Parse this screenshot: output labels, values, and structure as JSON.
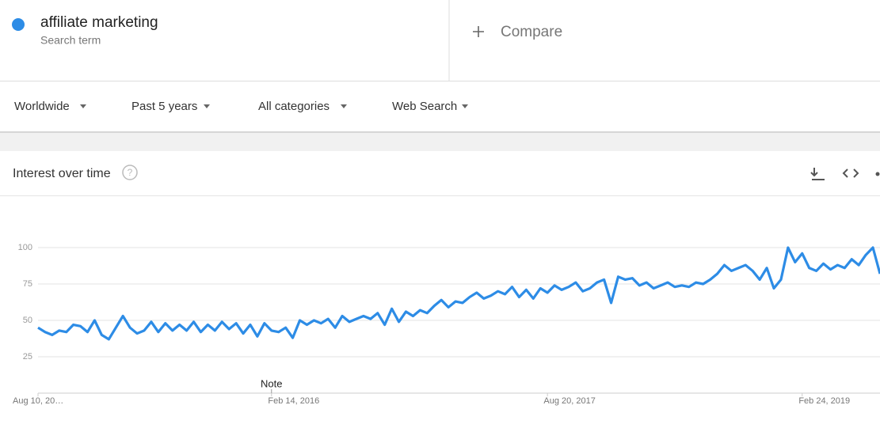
{
  "search": {
    "subtitle": "Search term",
    "compare": "Compare"
  },
  "filters": [
    "Worldwide",
    "Past 5 years",
    "All categories",
    "Web Search"
  ],
  "chart_data": {
    "type": "line",
    "title": "Interest over time",
    "annotation": "Note",
    "categories": [
      "Aug 10, 20…",
      null,
      null,
      null,
      null,
      null,
      null,
      null,
      null,
      null,
      null,
      null,
      null,
      null,
      null,
      null,
      null,
      null,
      null,
      null,
      null,
      null,
      null,
      null,
      null,
      null,
      null,
      null,
      null,
      null,
      null,
      null,
      null,
      "Feb 14, 2016",
      null,
      null,
      null,
      null,
      null,
      null,
      null,
      null,
      null,
      null,
      null,
      null,
      null,
      null,
      null,
      null,
      null,
      null,
      null,
      null,
      null,
      null,
      null,
      null,
      null,
      null,
      null,
      null,
      null,
      null,
      null,
      null,
      null,
      null,
      null,
      null,
      null,
      null,
      "Aug 20, 2017",
      null,
      null,
      null,
      null,
      null,
      null,
      null,
      null,
      null,
      null,
      null,
      null,
      null,
      null,
      null,
      null,
      null,
      null,
      null,
      null,
      null,
      null,
      null,
      null,
      null,
      null,
      null,
      null,
      null,
      null,
      null,
      null,
      null,
      null,
      null,
      "Feb 24, 2019",
      null,
      null,
      null,
      null,
      null,
      null,
      null,
      null,
      null,
      null,
      null
    ],
    "series": [
      {
        "name": "affiliate marketing",
        "color": "#2d8ce6",
        "values": [
          45,
          42,
          40,
          43,
          42,
          47,
          46,
          42,
          50,
          40,
          37,
          45,
          53,
          45,
          41,
          43,
          49,
          42,
          48,
          43,
          47,
          43,
          49,
          42,
          47,
          43,
          49,
          44,
          48,
          41,
          47,
          39,
          48,
          43,
          42,
          45,
          38,
          50,
          47,
          50,
          48,
          51,
          45,
          53,
          49,
          51,
          53,
          51,
          55,
          47,
          58,
          49,
          56,
          53,
          57,
          55,
          60,
          64,
          59,
          63,
          62,
          66,
          69,
          65,
          67,
          70,
          68,
          73,
          66,
          71,
          65,
          72,
          69,
          74,
          71,
          73,
          76,
          70,
          72,
          76,
          78,
          62,
          80,
          78,
          79,
          74,
          76,
          72,
          74,
          76,
          73,
          74,
          73,
          76,
          75,
          78,
          82,
          88,
          84,
          86,
          88,
          84,
          78,
          86,
          72,
          78,
          100,
          90,
          96,
          86,
          84,
          89,
          85,
          88,
          86,
          92,
          88,
          95,
          100,
          82
        ]
      }
    ],
    "ylim": [
      0,
      100
    ],
    "yticks": [
      25,
      50,
      75,
      100
    ],
    "grid": true
  }
}
